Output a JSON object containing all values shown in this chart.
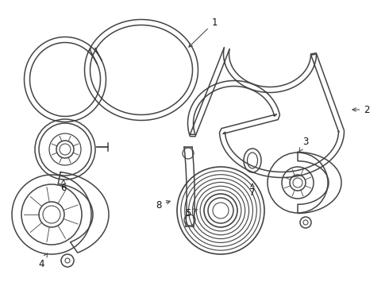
{
  "bg_color": "#ffffff",
  "line_color": "#444444",
  "label_color": "#111111",
  "lw": 1.1,
  "lw_thin": 0.8,
  "figsize": [
    4.9,
    3.6
  ],
  "dpi": 100
}
